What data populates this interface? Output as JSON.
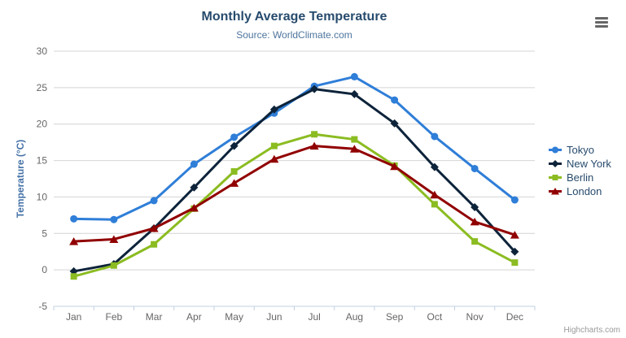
{
  "credits": {
    "label": "Highcharts.com"
  },
  "icons": {
    "export_menu": "hamburger-icon"
  },
  "colors": {
    "title": "#274b6d",
    "subtitle": "#4d759e",
    "axis_label": "#666666",
    "axis_title": "#4572a7",
    "grid": "#d4d4d4",
    "axis_line": "#c0d0e0",
    "legend_text": "#274b6d",
    "credits": "#999999",
    "menu_icon": "#666666",
    "background": "#ffffff"
  },
  "chart_data": {
    "type": "line",
    "title": "Monthly Average Temperature",
    "subtitle": "Source: WorldClimate.com",
    "categories": [
      "Jan",
      "Feb",
      "Mar",
      "Apr",
      "May",
      "Jun",
      "Jul",
      "Aug",
      "Sep",
      "Oct",
      "Nov",
      "Dec"
    ],
    "xlabel": "",
    "ylabel": "Temperature (°C)",
    "ylim": [
      -5,
      30
    ],
    "ytick_interval": 5,
    "yticks": [
      -5,
      0,
      5,
      10,
      15,
      20,
      25,
      30
    ],
    "grid": "horizontal",
    "legend_position": "right",
    "series": [
      {
        "name": "Tokyo",
        "color": "#2f7ed8",
        "marker": "circle",
        "values": [
          7.0,
          6.9,
          9.5,
          14.5,
          18.2,
          21.5,
          25.2,
          26.5,
          23.3,
          18.3,
          13.9,
          9.6
        ]
      },
      {
        "name": "New York",
        "color": "#0d233a",
        "marker": "diamond",
        "values": [
          -0.2,
          0.8,
          5.7,
          11.3,
          17.0,
          22.0,
          24.8,
          24.1,
          20.1,
          14.1,
          8.6,
          2.5
        ]
      },
      {
        "name": "Berlin",
        "color": "#8bbc21",
        "marker": "square",
        "values": [
          -0.9,
          0.6,
          3.5,
          8.4,
          13.5,
          17.0,
          18.6,
          17.9,
          14.3,
          9.0,
          3.9,
          1.0
        ]
      },
      {
        "name": "London",
        "color": "#910000",
        "marker": "triangle",
        "values": [
          3.9,
          4.2,
          5.7,
          8.5,
          11.9,
          15.2,
          17.0,
          16.6,
          14.2,
          10.3,
          6.6,
          4.8
        ]
      }
    ]
  }
}
